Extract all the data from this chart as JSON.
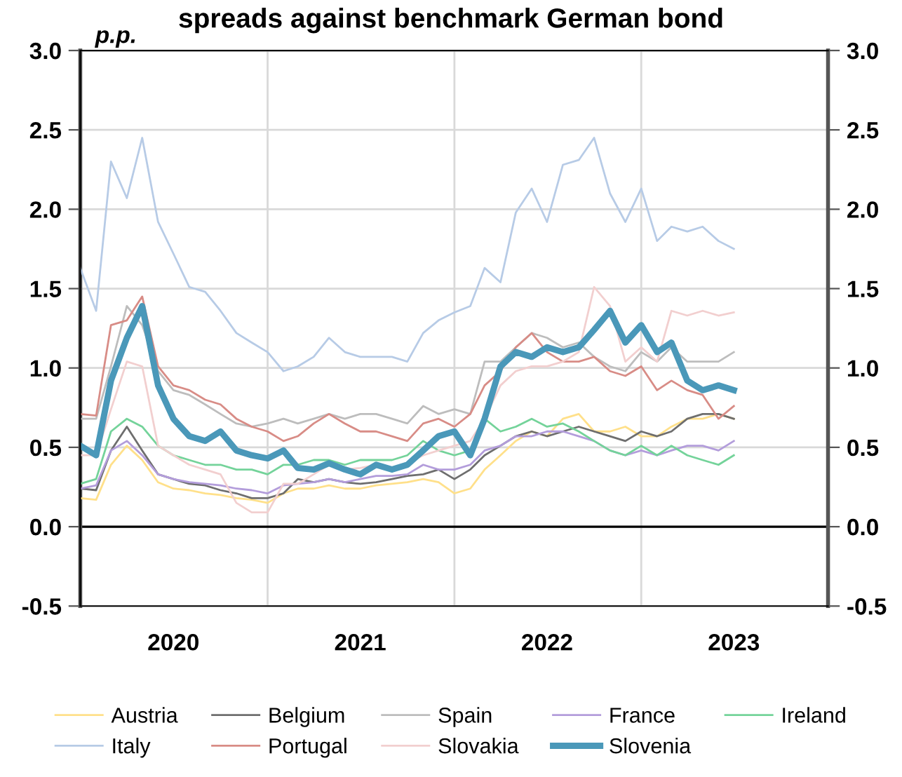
{
  "chart_data": {
    "type": "line",
    "title": "spreads against benchmark German bond",
    "ylabel": "p.p.",
    "x": [
      "2020-01",
      "2020-02",
      "2020-03",
      "2020-04",
      "2020-05",
      "2020-06",
      "2020-07",
      "2020-08",
      "2020-09",
      "2020-10",
      "2020-11",
      "2020-12",
      "2021-01",
      "2021-02",
      "2021-03",
      "2021-04",
      "2021-05",
      "2021-06",
      "2021-07",
      "2021-08",
      "2021-09",
      "2021-10",
      "2021-11",
      "2021-12",
      "2022-01",
      "2022-02",
      "2022-03",
      "2022-04",
      "2022-05",
      "2022-06",
      "2022-07",
      "2022-08",
      "2022-09",
      "2022-10",
      "2022-11",
      "2022-12",
      "2023-01",
      "2023-02",
      "2023-03",
      "2023-04",
      "2023-05",
      "2023-06",
      "2023-07"
    ],
    "series": [
      {
        "name": "Austria",
        "color": "#ffe08a",
        "values": [
          0.18,
          0.17,
          0.39,
          0.51,
          0.42,
          0.28,
          0.24,
          0.23,
          0.21,
          0.2,
          0.18,
          0.17,
          0.15,
          0.21,
          0.24,
          0.24,
          0.26,
          0.24,
          0.24,
          0.26,
          0.27,
          0.28,
          0.3,
          0.28,
          0.21,
          0.24,
          0.36,
          0.45,
          0.54,
          0.6,
          0.57,
          0.68,
          0.71,
          0.6,
          0.6,
          0.63,
          0.57,
          0.57,
          0.63,
          0.68,
          0.68,
          0.71,
          0.68
        ]
      },
      {
        "name": "Belgium",
        "color": "#6e6e6e",
        "values": [
          0.24,
          0.23,
          0.48,
          0.63,
          0.48,
          0.33,
          0.3,
          0.27,
          0.26,
          0.23,
          0.21,
          0.18,
          0.18,
          0.21,
          0.3,
          0.28,
          0.3,
          0.28,
          0.27,
          0.28,
          0.3,
          0.32,
          0.33,
          0.36,
          0.3,
          0.36,
          0.45,
          0.51,
          0.57,
          0.6,
          0.57,
          0.6,
          0.63,
          0.6,
          0.57,
          0.54,
          0.6,
          0.57,
          0.6,
          0.68,
          0.71,
          0.71,
          0.68
        ]
      },
      {
        "name": "Spain",
        "color": "#bdbdbd",
        "values": [
          0.68,
          0.68,
          1.01,
          1.39,
          1.27,
          0.98,
          0.86,
          0.83,
          0.77,
          0.71,
          0.65,
          0.63,
          0.65,
          0.68,
          0.65,
          0.68,
          0.71,
          0.68,
          0.71,
          0.71,
          0.68,
          0.65,
          0.76,
          0.71,
          0.74,
          0.71,
          1.04,
          1.04,
          1.13,
          1.22,
          1.19,
          1.13,
          1.16,
          1.07,
          1.01,
          0.98,
          1.1,
          1.04,
          1.13,
          1.04,
          1.04,
          1.04,
          1.1
        ]
      },
      {
        "name": "France",
        "color": "#b39ddb",
        "values": [
          0.24,
          0.26,
          0.48,
          0.54,
          0.45,
          0.33,
          0.3,
          0.28,
          0.27,
          0.26,
          0.24,
          0.23,
          0.21,
          0.26,
          0.27,
          0.28,
          0.3,
          0.28,
          0.3,
          0.32,
          0.32,
          0.33,
          0.39,
          0.36,
          0.36,
          0.39,
          0.48,
          0.51,
          0.57,
          0.57,
          0.6,
          0.6,
          0.57,
          0.54,
          0.48,
          0.45,
          0.48,
          0.45,
          0.48,
          0.51,
          0.51,
          0.48,
          0.54
        ]
      },
      {
        "name": "Ireland",
        "color": "#74d39a",
        "values": [
          0.27,
          0.3,
          0.6,
          0.68,
          0.63,
          0.51,
          0.45,
          0.42,
          0.39,
          0.39,
          0.36,
          0.36,
          0.33,
          0.39,
          0.39,
          0.42,
          0.42,
          0.39,
          0.42,
          0.42,
          0.42,
          0.45,
          0.54,
          0.48,
          0.45,
          0.48,
          0.68,
          0.6,
          0.63,
          0.68,
          0.63,
          0.65,
          0.6,
          0.54,
          0.48,
          0.45,
          0.51,
          0.45,
          0.51,
          0.45,
          0.42,
          0.39,
          0.45
        ]
      },
      {
        "name": "Italy",
        "color": "#b7cbe6",
        "values": [
          1.63,
          1.36,
          2.3,
          2.07,
          2.45,
          1.92,
          1.72,
          1.51,
          1.48,
          1.36,
          1.22,
          1.16,
          1.1,
          0.98,
          1.01,
          1.07,
          1.19,
          1.1,
          1.07,
          1.07,
          1.07,
          1.04,
          1.22,
          1.3,
          1.35,
          1.39,
          1.63,
          1.54,
          1.98,
          2.13,
          1.92,
          2.28,
          2.31,
          2.45,
          2.1,
          1.92,
          2.13,
          1.8,
          1.89,
          1.86,
          1.89,
          1.8,
          1.75
        ]
      },
      {
        "name": "Portugal",
        "color": "#d88c86",
        "values": [
          0.71,
          0.7,
          1.27,
          1.3,
          1.45,
          1.01,
          0.89,
          0.86,
          0.8,
          0.77,
          0.68,
          0.63,
          0.6,
          0.54,
          0.57,
          0.65,
          0.71,
          0.65,
          0.6,
          0.6,
          0.57,
          0.54,
          0.65,
          0.68,
          0.63,
          0.71,
          0.89,
          0.98,
          1.13,
          1.22,
          1.1,
          1.04,
          1.04,
          1.07,
          0.98,
          0.95,
          1.01,
          0.86,
          0.92,
          0.86,
          0.83,
          0.68,
          0.76
        ]
      },
      {
        "name": "Slovakia",
        "color": "#f2cfcf",
        "values": [
          0.45,
          0.45,
          0.74,
          1.04,
          1.01,
          0.51,
          0.45,
          0.39,
          0.36,
          0.33,
          0.15,
          0.09,
          0.09,
          0.27,
          0.27,
          0.33,
          0.39,
          0.36,
          0.37,
          0.39,
          0.37,
          0.4,
          0.45,
          0.48,
          0.51,
          0.54,
          0.68,
          0.89,
          0.98,
          1.01,
          1.01,
          1.04,
          1.1,
          1.51,
          1.39,
          1.04,
          1.13,
          1.04,
          1.36,
          1.33,
          1.36,
          1.33,
          1.35
        ]
      },
      {
        "name": "Slovenia",
        "color": "#4a98b9",
        "values": [
          0.51,
          0.45,
          0.92,
          1.19,
          1.39,
          0.89,
          0.68,
          0.57,
          0.54,
          0.6,
          0.48,
          0.45,
          0.43,
          0.48,
          0.37,
          0.36,
          0.4,
          0.36,
          0.33,
          0.39,
          0.36,
          0.39,
          0.48,
          0.57,
          0.6,
          0.45,
          0.68,
          1.01,
          1.1,
          1.07,
          1.13,
          1.1,
          1.13,
          1.24,
          1.36,
          1.16,
          1.27,
          1.1,
          1.16,
          0.92,
          0.86,
          0.89,
          0.86
        ]
      }
    ],
    "xlim": [
      "2020-01-01",
      "2024-01-01"
    ],
    "xticks": [
      {
        "value": "2020-01-01",
        "label": null
      },
      {
        "value": "2020-07-01",
        "label": "2020"
      },
      {
        "value": "2021-01-01",
        "label": null
      },
      {
        "value": "2021-07-01",
        "label": "2021"
      },
      {
        "value": "2022-01-01",
        "label": null
      },
      {
        "value": "2022-07-01",
        "label": "2022"
      },
      {
        "value": "2023-01-01",
        "label": null
      },
      {
        "value": "2023-07-01",
        "label": "2023"
      },
      {
        "value": "2024-01-01",
        "label": null
      }
    ],
    "ylim": [
      -0.5,
      3.0
    ],
    "yticks": [
      {
        "value": -0.5,
        "label": "-0.5"
      },
      {
        "value": 0,
        "label": "0.0"
      },
      {
        "value": 0.5,
        "label": "0.5"
      },
      {
        "value": 1,
        "label": "1.0"
      },
      {
        "value": 1.5,
        "label": "1.5"
      },
      {
        "value": 2,
        "label": "2.0"
      },
      {
        "value": 2.5,
        "label": "2.5"
      },
      {
        "value": 3,
        "label": "3.0"
      }
    ],
    "y2lim": [
      -0.5,
      3.0
    ],
    "y2ticks": [
      {
        "value": -0.5,
        "label": "-0.5"
      },
      {
        "value": 0,
        "label": "0.0"
      },
      {
        "value": 0.5,
        "label": "0.5"
      },
      {
        "value": 1,
        "label": "1.0"
      },
      {
        "value": 1.5,
        "label": "1.5"
      },
      {
        "value": 2,
        "label": "2.0"
      },
      {
        "value": 2.5,
        "label": "2.5"
      },
      {
        "value": 3,
        "label": "3.0"
      }
    ],
    "ref_lines": [
      {
        "axis": "y",
        "value": 0,
        "label": null,
        "color": "#000000"
      }
    ],
    "grid": true,
    "legend": "bottom",
    "marker": "none",
    "line_style": "solid"
  }
}
